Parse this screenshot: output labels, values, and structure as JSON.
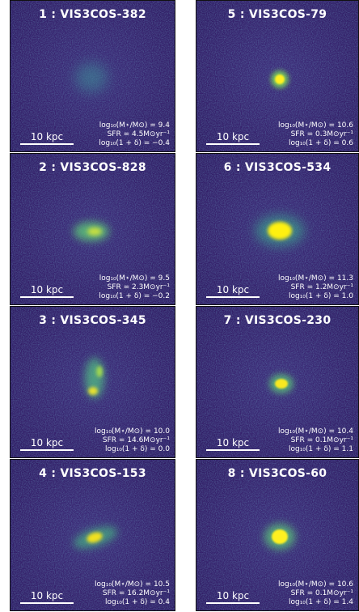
{
  "panels": [
    {
      "title": "1 : VIS3COS-382",
      "scale": "10 kpc",
      "mass": "log₁₀(M⋆/M⊙) = 9.4",
      "sfr": "SFR = 4.5M⊙yr⁻¹",
      "density": "log₁₀(1 + δ) = −0.4"
    },
    {
      "title": "2 : VIS3COS-828",
      "scale": "10 kpc",
      "mass": "log₁₀(M⋆/M⊙) = 9.5",
      "sfr": "SFR = 2.3M⊙yr⁻¹",
      "density": "log₁₀(1 + δ) = −0.2"
    },
    {
      "title": "3 : VIS3COS-345",
      "scale": "10 kpc",
      "mass": "log₁₀(M⋆/M⊙) = 10.0",
      "sfr": "SFR = 14.6M⊙yr⁻¹",
      "density": "log₁₀(1 + δ) = 0.0"
    },
    {
      "title": "4 : VIS3COS-153",
      "scale": "10 kpc",
      "mass": "log₁₀(M⋆/M⊙) = 10.5",
      "sfr": "SFR = 16.2M⊙yr⁻¹",
      "density": "log₁₀(1 + δ) = 0.4"
    },
    {
      "title": "5 : VIS3COS-79",
      "scale": "10 kpc",
      "mass": "log₁₀(M⋆/M⊙) = 10.6",
      "sfr": "SFR = 0.3M⊙yr⁻¹",
      "density": "log₁₀(1 + δ) = 0.6"
    },
    {
      "title": "6 : VIS3COS-534",
      "scale": "10 kpc",
      "mass": "log₁₀(M⋆/M⊙) = 11.3",
      "sfr": "SFR = 1.2M⊙yr⁻¹",
      "density": "log₁₀(1 + δ) = 1.0"
    },
    {
      "title": "7 : VIS3COS-230",
      "scale": "10 kpc",
      "mass": "log₁₀(M⋆/M⊙) = 10.4",
      "sfr": "SFR = 0.1M⊙yr⁻¹",
      "density": "log₁₀(1 + δ) = 1.1"
    },
    {
      "title": "8 : VIS3COS-60",
      "scale": "10 kpc",
      "mass": "log₁₀(M⋆/M⊙) = 10.6",
      "sfr": "SFR = 0.1M⊙yr⁻¹",
      "density": "log₁₀(1 + δ) = 1.4"
    }
  ]
}
